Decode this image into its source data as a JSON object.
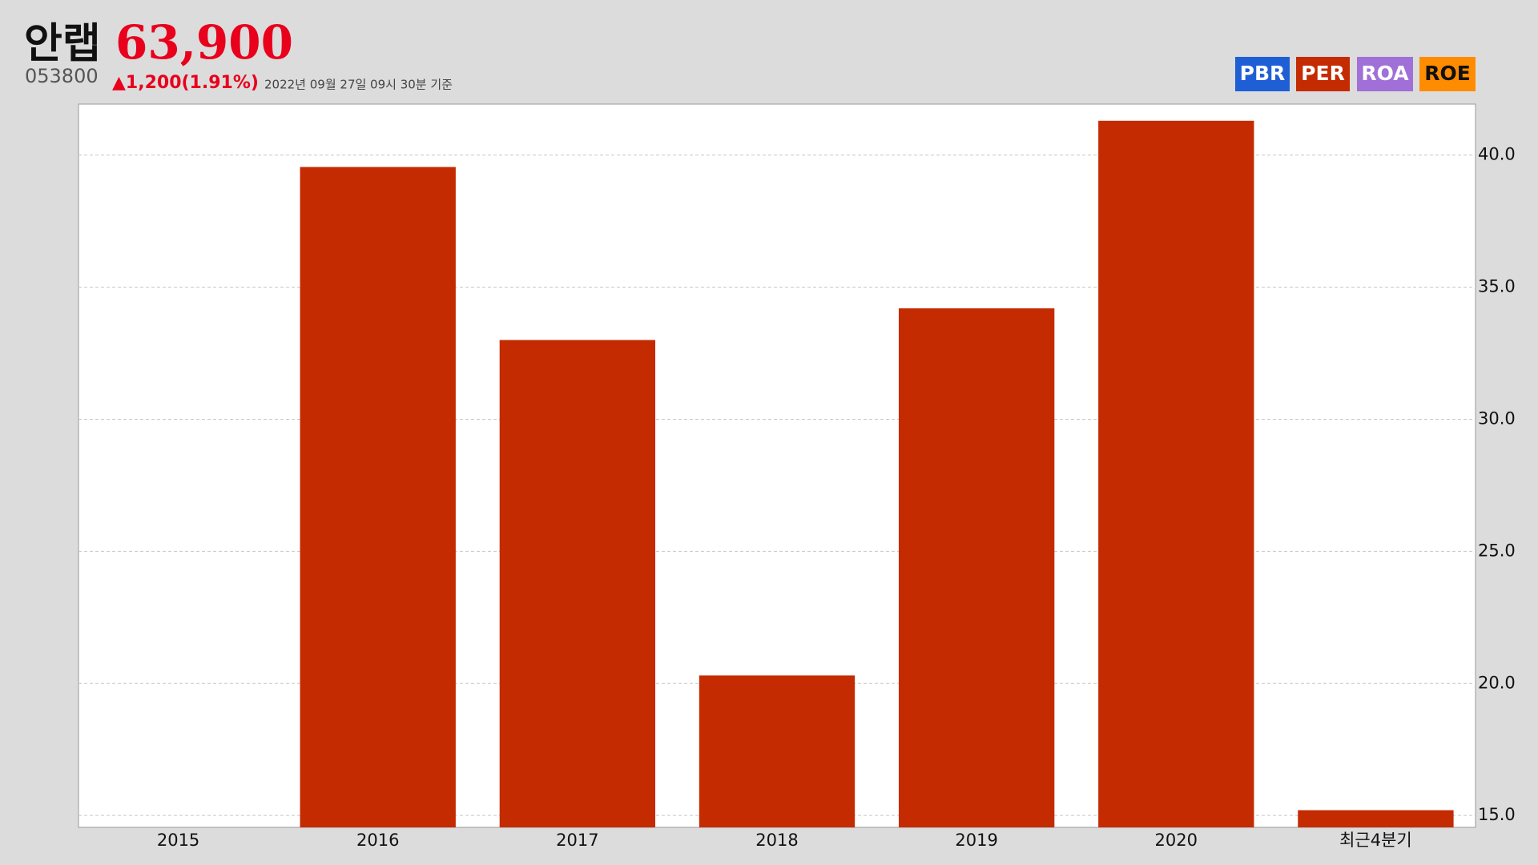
{
  "header": {
    "name": "안랩",
    "price": "63,900",
    "code": "053800",
    "change": "▲1,200(1.91%)",
    "timestamp": "2022년 09월 27일 09시 30분 기준"
  },
  "buttons": [
    {
      "label": "PBR",
      "color": "#1f5fd6",
      "text_color": "#ffffff"
    },
    {
      "label": "PER",
      "color": "#c42b00",
      "text_color": "#ffffff"
    },
    {
      "label": "ROA",
      "color": "#a070d8",
      "text_color": "#ffffff"
    },
    {
      "label": "ROE",
      "color": "#ff8c00",
      "text_color": "#111111"
    }
  ],
  "chart_data": {
    "type": "bar",
    "categories": [
      "2015",
      "2016",
      "2017",
      "2018",
      "2019",
      "2020",
      "최근4분기"
    ],
    "values": [
      null,
      39.55,
      33.0,
      20.3,
      34.2,
      41.3,
      15.2
    ],
    "color": "#c42b00",
    "ylim": [
      14.55,
      41.93
    ],
    "yticks": [
      {
        "value": 15,
        "label": "15.0"
      },
      {
        "value": 20,
        "label": "20.0"
      },
      {
        "value": 25,
        "label": "25.0"
      },
      {
        "value": 30,
        "label": "30.0"
      },
      {
        "value": 35,
        "label": "35.0"
      },
      {
        "value": 40,
        "label": "40.0"
      }
    ],
    "grid": true
  }
}
